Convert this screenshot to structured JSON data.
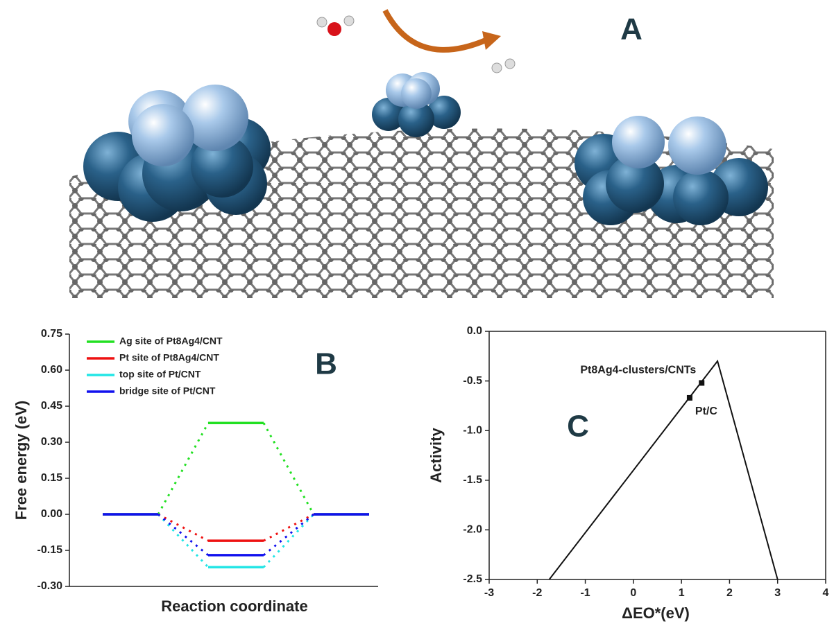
{
  "illustration": {
    "label": "A"
  },
  "chart_data": [
    {
      "type": "level",
      "label": "B",
      "y_label": "Free energy (eV)",
      "x_label": "Reaction coordinate",
      "categories": [
        null,
        null,
        null
      ],
      "series": [
        {
          "name": "Ag site of Pt8Ag4/CNT",
          "color": "#22e022",
          "values": [
            0,
            0.38,
            0
          ]
        },
        {
          "name": "Pt site of Pt8Ag4/CNT",
          "color": "#ee1111",
          "values": [
            0,
            -0.11,
            0
          ]
        },
        {
          "name": "top site of Pt/CNT",
          "color": "#22e5e5",
          "values": [
            0,
            -0.22,
            0
          ]
        },
        {
          "name": "bridge site of Pt/CNT",
          "color": "#1111ee",
          "values": [
            0,
            -0.17,
            0
          ]
        }
      ],
      "ylim": [
        -0.3,
        0.75
      ],
      "yticks": [
        {
          "value": -0.3,
          "label": "-0.30"
        },
        {
          "value": -0.15,
          "label": "-0.15"
        },
        {
          "value": 0,
          "label": "0.00"
        },
        {
          "value": 0.15,
          "label": "0.15"
        },
        {
          "value": 0.3,
          "label": "0.30"
        },
        {
          "value": 0.45,
          "label": "0.45"
        },
        {
          "value": 0.6,
          "label": "0.60"
        },
        {
          "value": 0.75,
          "label": "0.75"
        }
      ]
    },
    {
      "type": "line",
      "label": "C",
      "y_label": "Activity",
      "x_label": "ΔEO*(eV)",
      "x": [
        -1.75,
        1.75,
        3
      ],
      "values": [
        -2.5,
        -0.3,
        -2.5
      ],
      "color": "#111111",
      "points": [
        {
          "label": "Pt8Ag4-clusters/CNTs",
          "x": 1.42,
          "y": -0.52
        },
        {
          "label": "Pt/C",
          "x": 1.17,
          "y": -0.67
        }
      ],
      "xlim": [
        -3,
        4
      ],
      "xticks": [
        -3,
        -2,
        -1,
        0,
        1,
        2,
        3,
        4
      ],
      "ylim": [
        -2.5,
        0
      ],
      "yticks": [
        {
          "value": -2.5,
          "label": "-2.5"
        },
        {
          "value": -2,
          "label": "-2.0"
        },
        {
          "value": -1.5,
          "label": "-1.5"
        },
        {
          "value": -1,
          "label": "-1.0"
        },
        {
          "value": -0.5,
          "label": "-0.5"
        },
        {
          "value": 0,
          "label": "0.0"
        }
      ]
    }
  ]
}
